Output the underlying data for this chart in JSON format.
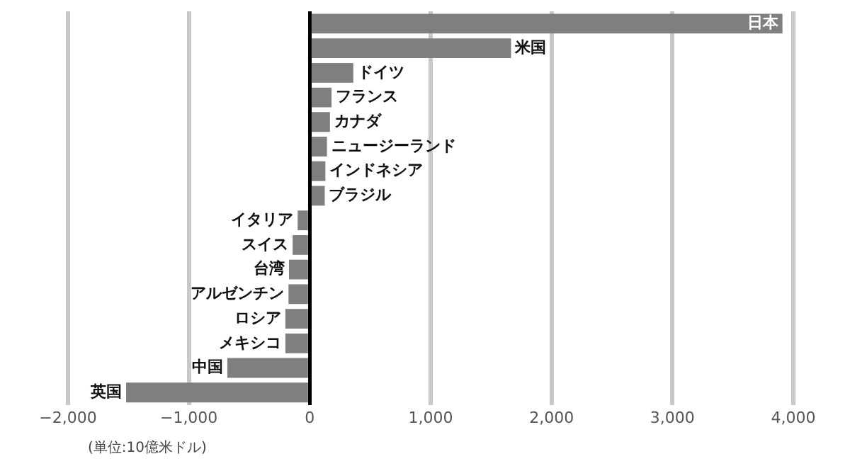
{
  "chart_data": {
    "type": "bar",
    "orientation": "horizontal",
    "categories": [
      "日本",
      "米国",
      "ドイツ",
      "フランス",
      "カナダ",
      "ニュージーランド",
      "インドネシア",
      "ブラジル",
      "イタリア",
      "スイス",
      "台湾",
      "アルゼンチン",
      "ロシア",
      "メキシコ",
      "中国",
      "英国"
    ],
    "values": [
      3910,
      1665,
      360,
      180,
      167,
      142,
      129,
      124,
      -100,
      -142,
      -172,
      -176,
      -202,
      -202,
      -682,
      -1519
    ],
    "color": "#7f7f7f",
    "xlim": [
      -2000,
      4000
    ],
    "xticks": [
      {
        "value": -2000,
        "label": "−2,000"
      },
      {
        "value": -1000,
        "label": "−1,000"
      },
      0,
      {
        "value": 1000,
        "label": "1,000"
      },
      {
        "value": 2000,
        "label": "2,000"
      },
      {
        "value": 3000,
        "label": "3,000"
      },
      {
        "value": 4000,
        "label": "4,000"
      }
    ],
    "grid": "x",
    "legend": false,
    "annotations": [
      "(単位:10億米ドル)"
    ]
  }
}
